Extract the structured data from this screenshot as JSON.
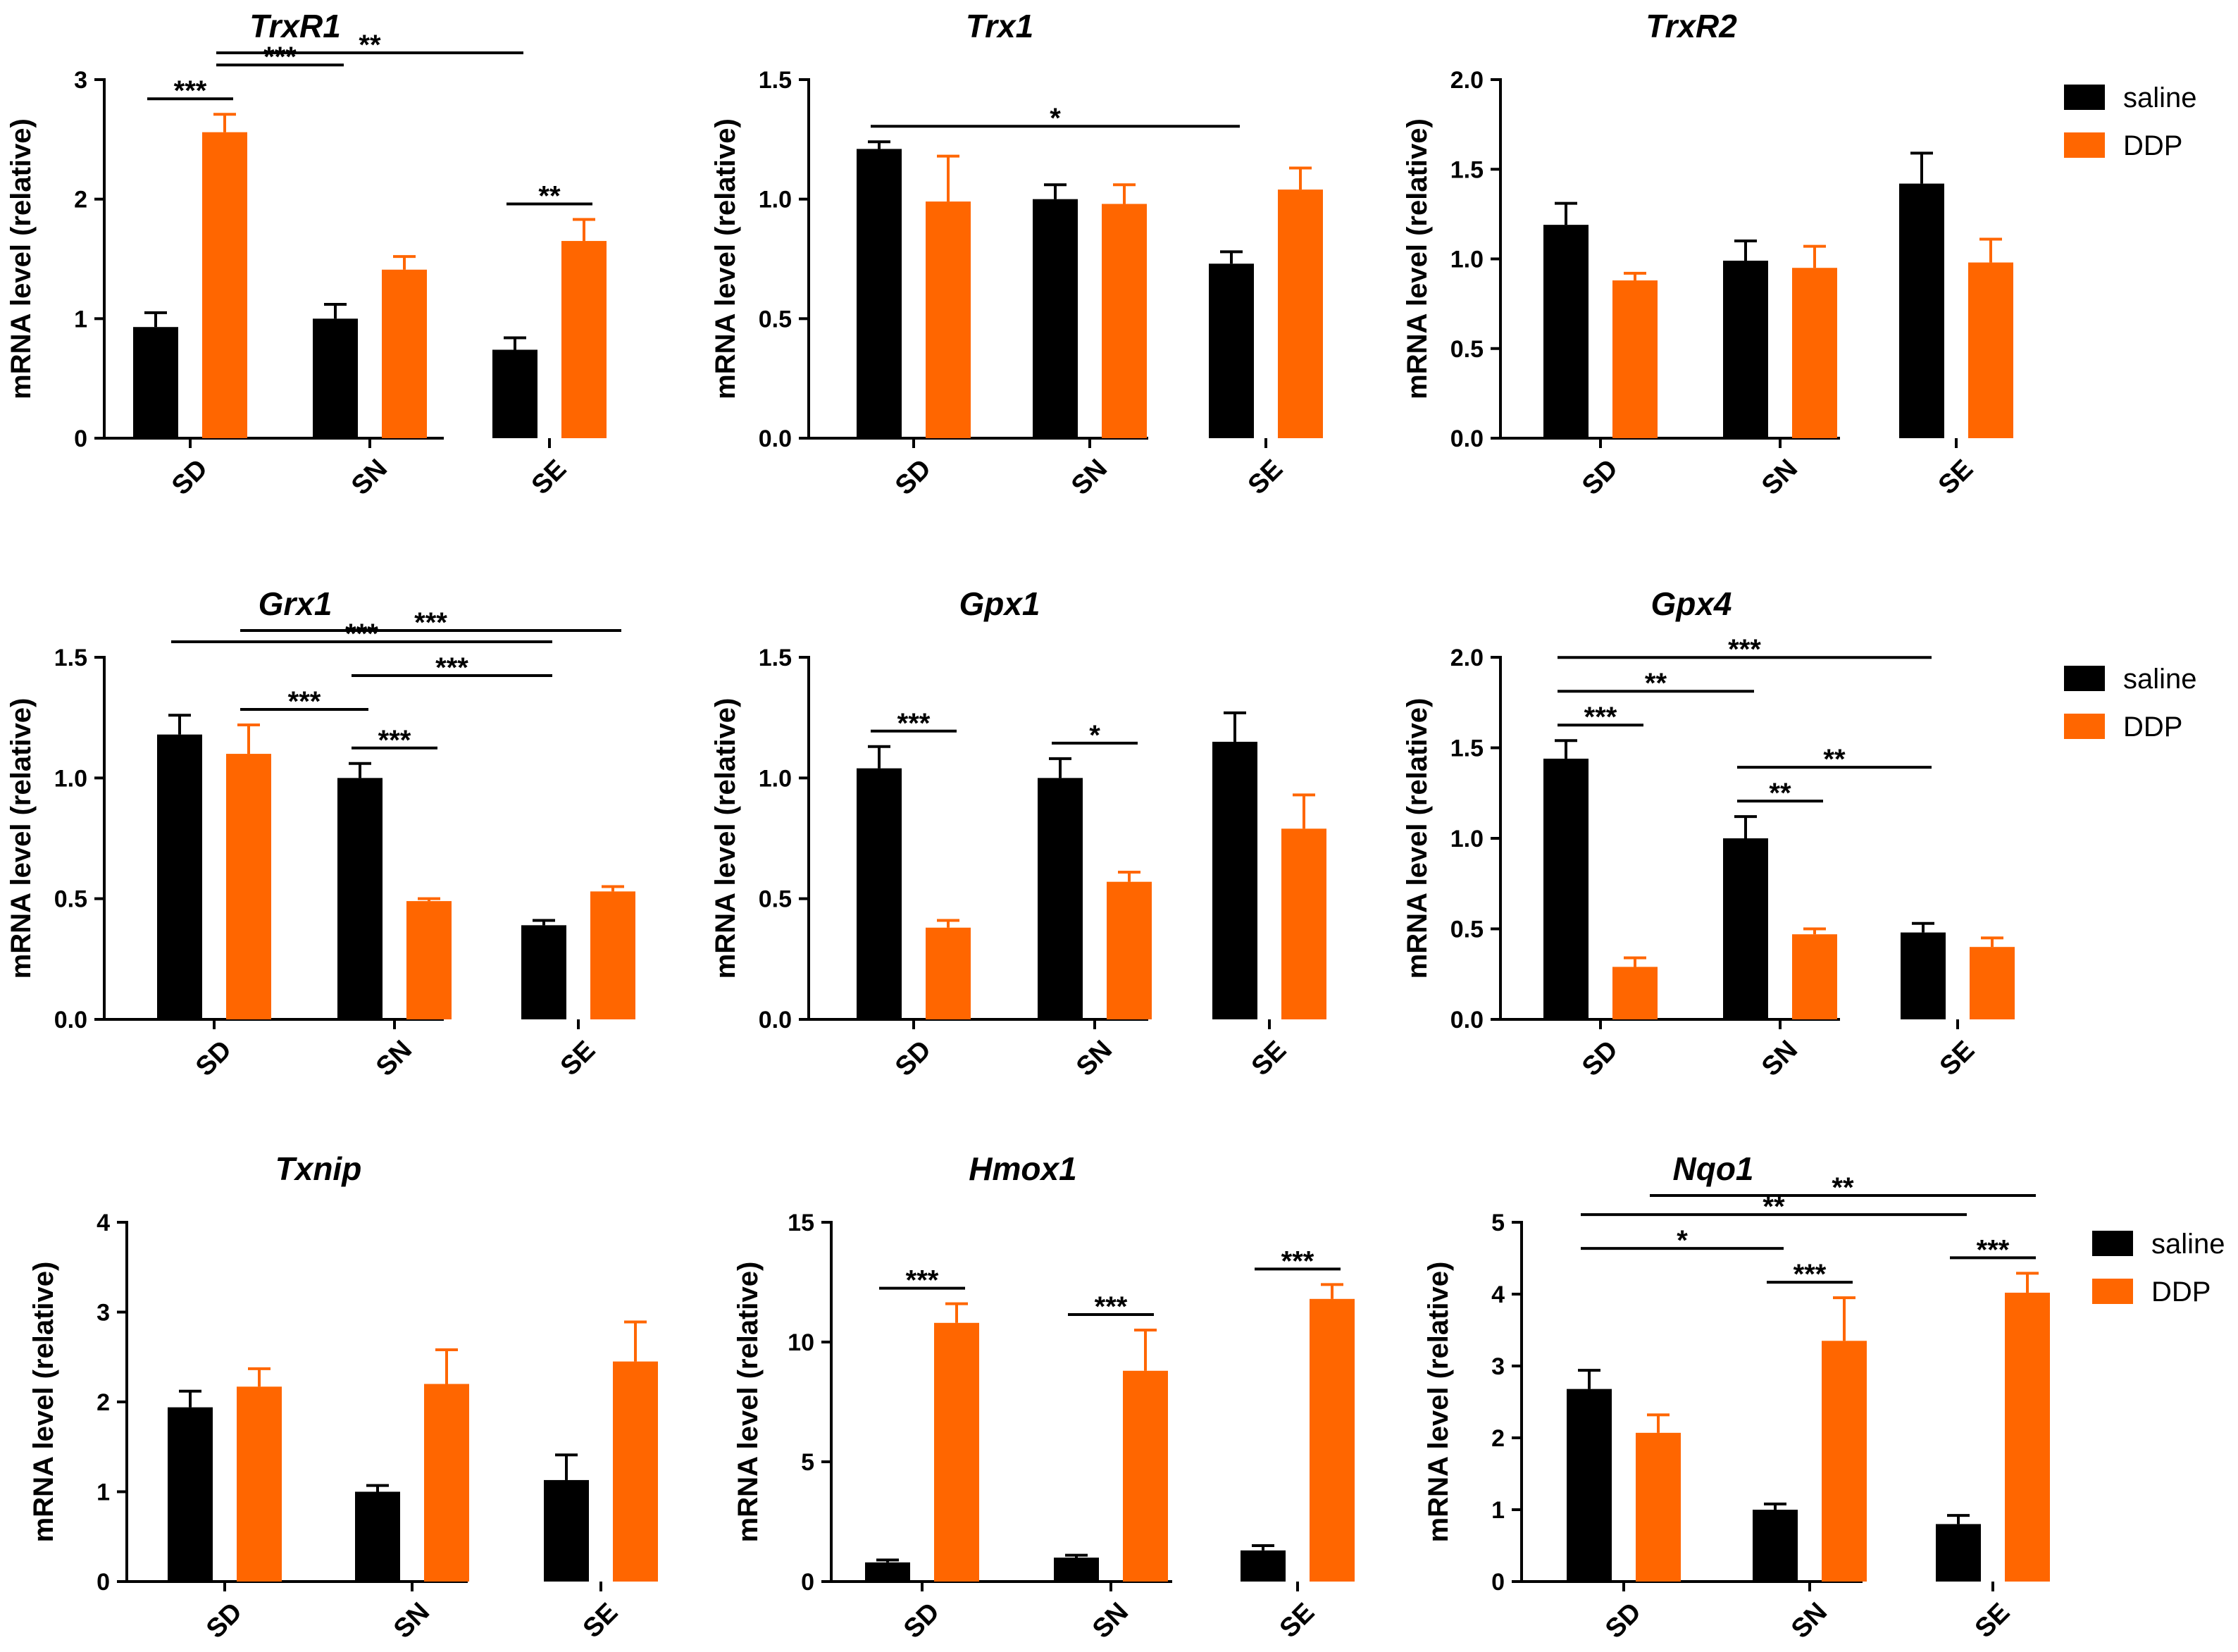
{
  "colors": {
    "saline": "#000000",
    "DDP": "#ff6600"
  },
  "legend": [
    {
      "label": "saline",
      "color": "#000000"
    },
    {
      "label": "DDP",
      "color": "#ff6600"
    }
  ],
  "chart_data": [
    {
      "type": "bar",
      "title": "TrxR1",
      "ylabel": "mRNA level (relative)",
      "categories": [
        "SD",
        "SN",
        "SE"
      ],
      "ylim": [
        0,
        3
      ],
      "yticks": [
        "0",
        "1",
        "2",
        "3"
      ],
      "series": [
        {
          "name": "saline",
          "values": [
            0.93,
            1.0,
            0.74
          ],
          "errors": [
            0.12,
            0.12,
            0.1
          ]
        },
        {
          "name": "DDP",
          "values": [
            2.56,
            1.41,
            1.65
          ],
          "errors": [
            0.15,
            0.11,
            0.18
          ]
        }
      ],
      "significance": [
        {
          "from": [
            0,
            0
          ],
          "to": [
            0,
            1
          ],
          "label": "***"
        },
        {
          "from": [
            0,
            1
          ],
          "to": [
            1,
            0
          ],
          "label": "***"
        },
        {
          "from": [
            0,
            1
          ],
          "to": [
            2,
            0
          ],
          "label": "**"
        },
        {
          "from": [
            2,
            0
          ],
          "to": [
            2,
            1
          ],
          "label": "**"
        }
      ]
    },
    {
      "type": "bar",
      "title": "Trx1",
      "ylabel": "mRNA level (relative)",
      "categories": [
        "SD",
        "SN",
        "SE"
      ],
      "ylim": [
        0,
        1.5
      ],
      "yticks": [
        "0.0",
        "0.5",
        "1.0",
        "1.5"
      ],
      "series": [
        {
          "name": "saline",
          "values": [
            1.21,
            1.0,
            0.73
          ],
          "errors": [
            0.03,
            0.06,
            0.05
          ]
        },
        {
          "name": "DDP",
          "values": [
            0.99,
            0.98,
            1.04
          ],
          "errors": [
            0.19,
            0.08,
            0.09
          ]
        }
      ],
      "significance": [
        {
          "from": [
            0,
            0
          ],
          "to": [
            2,
            0
          ],
          "label": "*"
        }
      ]
    },
    {
      "type": "bar",
      "title": "TrxR2",
      "ylabel": "mRNA level (relative)",
      "categories": [
        "SD",
        "SN",
        "SE"
      ],
      "ylim": [
        0,
        2
      ],
      "yticks": [
        "0.0",
        "0.5",
        "1.0",
        "1.5",
        "2.0"
      ],
      "series": [
        {
          "name": "saline",
          "values": [
            1.19,
            0.99,
            1.42
          ],
          "errors": [
            0.12,
            0.11,
            0.17
          ]
        },
        {
          "name": "DDP",
          "values": [
            0.88,
            0.95,
            0.98
          ],
          "errors": [
            0.04,
            0.12,
            0.13
          ]
        }
      ],
      "significance": []
    },
    {
      "type": "bar",
      "title": "Grx1",
      "ylabel": "mRNA level (relative)",
      "categories": [
        "SD",
        "SN",
        "SE"
      ],
      "ylim": [
        0,
        1.5
      ],
      "yticks": [
        "0.0",
        "0.5",
        "1.0",
        "1.5"
      ],
      "series": [
        {
          "name": "saline",
          "values": [
            1.18,
            1.0,
            0.39
          ],
          "errors": [
            0.08,
            0.06,
            0.02
          ]
        },
        {
          "name": "DDP",
          "values": [
            1.1,
            0.49,
            0.53
          ],
          "errors": [
            0.12,
            0.01,
            0.02
          ]
        }
      ],
      "significance": [
        {
          "from": [
            1,
            0
          ],
          "to": [
            1,
            1
          ],
          "label": "***"
        },
        {
          "from": [
            0,
            1
          ],
          "to": [
            1,
            0
          ],
          "label": "***"
        },
        {
          "from": [
            0,
            0
          ],
          "to": [
            2,
            0
          ],
          "label": "***"
        },
        {
          "from": [
            0,
            1
          ],
          "to": [
            2,
            1
          ],
          "label": "***"
        },
        {
          "from": [
            1,
            0
          ],
          "to": [
            2,
            0
          ],
          "label": "***"
        }
      ]
    },
    {
      "type": "bar",
      "title": "Gpx1",
      "ylabel": "mRNA level (relative)",
      "categories": [
        "SD",
        "SN",
        "SE"
      ],
      "ylim": [
        0,
        1.5
      ],
      "yticks": [
        "0.0",
        "0.5",
        "1.0",
        "1.5"
      ],
      "series": [
        {
          "name": "saline",
          "values": [
            1.04,
            1.0,
            1.15
          ],
          "errors": [
            0.09,
            0.08,
            0.12
          ]
        },
        {
          "name": "DDP",
          "values": [
            0.38,
            0.57,
            0.79
          ],
          "errors": [
            0.03,
            0.04,
            0.14
          ]
        }
      ],
      "significance": [
        {
          "from": [
            0,
            0
          ],
          "to": [
            0,
            1
          ],
          "label": "***"
        },
        {
          "from": [
            1,
            0
          ],
          "to": [
            1,
            1
          ],
          "label": "*"
        }
      ]
    },
    {
      "type": "bar",
      "title": "Gpx4",
      "ylabel": "mRNA level (relative)",
      "categories": [
        "SD",
        "SN",
        "SE"
      ],
      "ylim": [
        0,
        2
      ],
      "yticks": [
        "0.0",
        "0.5",
        "1.0",
        "1.5",
        "2.0"
      ],
      "series": [
        {
          "name": "saline",
          "values": [
            1.44,
            1.0,
            0.48
          ],
          "errors": [
            0.1,
            0.12,
            0.05
          ]
        },
        {
          "name": "DDP",
          "values": [
            0.29,
            0.47,
            0.4
          ],
          "errors": [
            0.05,
            0.03,
            0.05
          ]
        }
      ],
      "significance": [
        {
          "from": [
            0,
            0
          ],
          "to": [
            0,
            1
          ],
          "label": "***"
        },
        {
          "from": [
            0,
            0
          ],
          "to": [
            1,
            0
          ],
          "label": "**"
        },
        {
          "from": [
            0,
            0
          ],
          "to": [
            2,
            0
          ],
          "label": "***"
        },
        {
          "from": [
            1,
            0
          ],
          "to": [
            1,
            1
          ],
          "label": "**"
        },
        {
          "from": [
            1,
            0
          ],
          "to": [
            2,
            0
          ],
          "label": "**"
        }
      ]
    },
    {
      "type": "bar",
      "title": "Txnip",
      "ylabel": "mRNA level (relative)",
      "categories": [
        "SD",
        "SN",
        "SE"
      ],
      "ylim": [
        0,
        4
      ],
      "yticks": [
        "0",
        "1",
        "2",
        "3",
        "4"
      ],
      "series": [
        {
          "name": "saline",
          "values": [
            1.94,
            1.0,
            1.13
          ],
          "errors": [
            0.18,
            0.07,
            0.28
          ]
        },
        {
          "name": "DDP",
          "values": [
            2.17,
            2.2,
            2.45
          ],
          "errors": [
            0.2,
            0.38,
            0.44
          ]
        }
      ],
      "significance": []
    },
    {
      "type": "bar",
      "title": "Hmox1",
      "ylabel": "mRNA level (relative)",
      "categories": [
        "SD",
        "SN",
        "SE"
      ],
      "ylim": [
        0,
        15
      ],
      "yticks": [
        "0",
        "5",
        "10",
        "15"
      ],
      "series": [
        {
          "name": "saline",
          "values": [
            0.8,
            1.0,
            1.3
          ],
          "errors": [
            0.1,
            0.1,
            0.2
          ]
        },
        {
          "name": "DDP",
          "values": [
            10.8,
            8.8,
            11.8
          ],
          "errors": [
            0.8,
            1.7,
            0.6
          ]
        }
      ],
      "significance": [
        {
          "from": [
            0,
            0
          ],
          "to": [
            0,
            1
          ],
          "label": "***"
        },
        {
          "from": [
            1,
            0
          ],
          "to": [
            1,
            1
          ],
          "label": "***"
        },
        {
          "from": [
            2,
            0
          ],
          "to": [
            2,
            1
          ],
          "label": "***"
        }
      ]
    },
    {
      "type": "bar",
      "title": "Nqo1",
      "ylabel": "mRNA level (relative)",
      "categories": [
        "SD",
        "SN",
        "SE"
      ],
      "ylim": [
        0,
        5
      ],
      "yticks": [
        "0",
        "1",
        "2",
        "3",
        "4",
        "5"
      ],
      "series": [
        {
          "name": "saline",
          "values": [
            2.68,
            1.0,
            0.8
          ],
          "errors": [
            0.26,
            0.08,
            0.12
          ]
        },
        {
          "name": "DDP",
          "values": [
            2.07,
            3.35,
            4.02
          ],
          "errors": [
            0.25,
            0.6,
            0.27
          ]
        }
      ],
      "significance": [
        {
          "from": [
            0,
            0
          ],
          "to": [
            1,
            0
          ],
          "label": "*"
        },
        {
          "from": [
            1,
            0
          ],
          "to": [
            1,
            1
          ],
          "label": "***"
        },
        {
          "from": [
            2,
            0
          ],
          "to": [
            2,
            1
          ],
          "label": "***"
        },
        {
          "from": [
            0,
            0
          ],
          "to": [
            2,
            0
          ],
          "label": "**"
        },
        {
          "from": [
            0,
            1
          ],
          "to": [
            2,
            1
          ],
          "label": "**"
        }
      ]
    }
  ]
}
